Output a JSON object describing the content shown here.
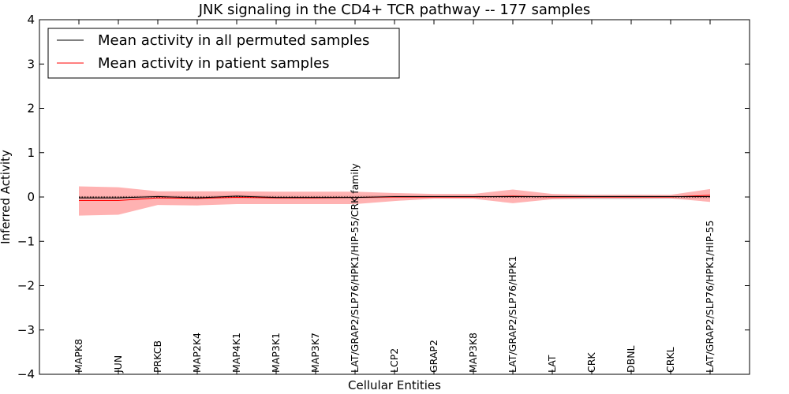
{
  "chart_data": {
    "type": "line",
    "title": "JNK signaling in the CD4+ TCR pathway -- 177 samples",
    "xlabel": "Cellular Entities",
    "ylabel": "Inferred Activity",
    "ylim": [
      -4,
      4
    ],
    "yticks": [
      4,
      3,
      2,
      1,
      0,
      -1,
      -2,
      -3,
      -4
    ],
    "ytick_labels": [
      "4",
      "3",
      "2",
      "1",
      "0",
      "−1",
      "−2",
      "−3",
      "−4"
    ],
    "categories": [
      "MAPK8",
      "JUN",
      "PRKCB",
      "MAP2K4",
      "MAP4K1",
      "MAP3K1",
      "MAP3K7",
      "LAT/GRAP2/SLP76/HPK1/HIP-55/CRK family",
      "LCP2",
      "GRAP2",
      "MAP3K8",
      "LAT/GRAP2/SLP76/HPK1",
      "LAT",
      "CRK",
      "DBNL",
      "CRKL",
      "LAT/GRAP2/SLP76/HPK1/HIP-55"
    ],
    "legend": {
      "position": "top-left"
    },
    "series": [
      {
        "name": "Mean activity in all permuted samples",
        "color": "#000000",
        "values": [
          -0.02,
          -0.02,
          0.01,
          -0.02,
          0.02,
          -0.01,
          -0.01,
          -0.01,
          0.01,
          0.01,
          0.01,
          0.01,
          0.01,
          0.01,
          0.01,
          0.01,
          0.01
        ],
        "band_lower": [
          -0.05,
          -0.05,
          -0.03,
          -0.05,
          -0.02,
          -0.04,
          -0.04,
          -0.04,
          -0.02,
          -0.02,
          -0.02,
          -0.02,
          -0.04,
          -0.05,
          -0.05,
          -0.04,
          -0.03
        ],
        "band_upper": [
          0.02,
          0.02,
          0.04,
          0.02,
          0.05,
          0.03,
          0.03,
          0.03,
          0.04,
          0.04,
          0.04,
          0.04,
          0.04,
          0.05,
          0.05,
          0.04,
          0.04
        ],
        "band_color": "#cccccc"
      },
      {
        "name": "Mean activity in patient samples",
        "color": "#ff0000",
        "values": [
          -0.08,
          -0.08,
          -0.02,
          -0.03,
          -0.01,
          -0.02,
          -0.02,
          -0.01,
          0.0,
          0.0,
          0.0,
          0.02,
          0.0,
          0.0,
          0.0,
          0.0,
          0.04
        ],
        "band_lower": [
          -0.42,
          -0.4,
          -0.18,
          -0.19,
          -0.16,
          -0.16,
          -0.16,
          -0.16,
          -0.09,
          -0.04,
          -0.04,
          -0.14,
          -0.05,
          -0.03,
          -0.03,
          -0.03,
          -0.11
        ],
        "band_upper": [
          0.24,
          0.22,
          0.13,
          0.13,
          0.13,
          0.12,
          0.12,
          0.12,
          0.09,
          0.07,
          0.07,
          0.17,
          0.07,
          0.05,
          0.05,
          0.05,
          0.18
        ],
        "band_color": "#ff0000"
      }
    ]
  }
}
